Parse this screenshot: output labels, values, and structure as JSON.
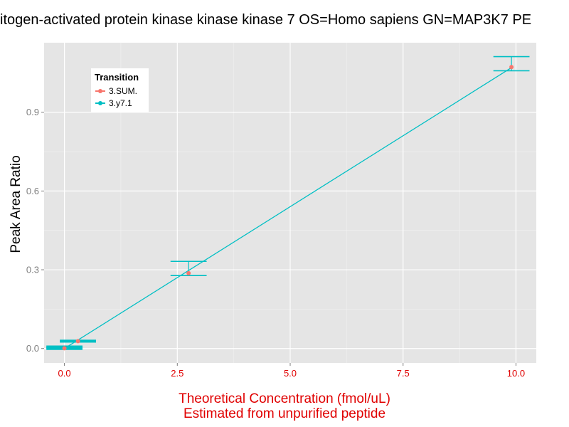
{
  "chart_data": {
    "type": "line",
    "title": "itogen-activated protein kinase kinase kinase 7 OS=Homo sapiens GN=MAP3K7 PE",
    "xlabel": "Theoretical Concentration (fmol/uL)",
    "xlabel_line2": "Estimated from unpurified peptide",
    "ylabel": "Peak Area Ratio",
    "xlim": [
      -0.45,
      10.45
    ],
    "ylim": [
      -0.055,
      1.165
    ],
    "xticks": [
      0.0,
      2.5,
      5.0,
      7.5,
      10.0
    ],
    "xtick_labels": [
      "0.0",
      "2.5",
      "5.0",
      "7.5",
      "10.0"
    ],
    "yticks": [
      0.0,
      0.3,
      0.6,
      0.9
    ],
    "ytick_labels": [
      "0.0",
      "0.3",
      "0.6",
      "0.9"
    ],
    "grid": true,
    "legend": {
      "title": "Transition",
      "position": "top-left"
    },
    "series": [
      {
        "name": "3.SUM.",
        "color": "#F8766D",
        "points": [
          {
            "x": 0.0,
            "y": 0.001
          },
          {
            "x": 0.3,
            "y": 0.028
          },
          {
            "x": 2.75,
            "y": 0.287
          },
          {
            "x": 9.9,
            "y": 1.072
          }
        ]
      },
      {
        "name": "3.y7.1",
        "color": "#00BFC4",
        "line": [
          {
            "x": 0.0,
            "y": 0.0
          },
          {
            "x": 9.9,
            "y": 1.07
          }
        ],
        "error_bars": [
          {
            "x": 0.0,
            "ymin": 0.0,
            "ymax": 0.006,
            "half_width_x": 0.4
          },
          {
            "x": 0.3,
            "ymin": 0.028,
            "ymax": 0.028,
            "half_width_x": 0.4
          },
          {
            "x": 2.75,
            "ymin": 0.278,
            "ymax": 0.332,
            "half_width_x": 0.4
          },
          {
            "x": 9.9,
            "ymin": 1.058,
            "ymax": 1.112,
            "half_width_x": 0.4
          }
        ]
      }
    ],
    "colors": {
      "panel_background": "#E5E5E5",
      "grid_major": "#FFFFFF",
      "grid_minor": "#F2F2F2",
      "axis_label_x": "#E00000",
      "tick_label_x": "#E00000",
      "tick_label_y": "#7F7F7F"
    }
  }
}
